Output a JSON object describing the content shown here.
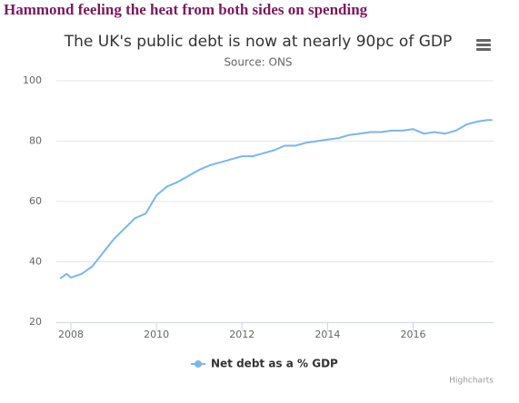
{
  "header": "Hammond feeling the heat from both sides on spending",
  "chart_data": {
    "type": "line",
    "title": "The UK's public debt is now at nearly 90pc of GDP",
    "subtitle": "Source: ONS",
    "credits": "Highcharts",
    "x": [
      2007.75,
      2007.9,
      2008.0,
      2008.25,
      2008.5,
      2008.75,
      2009.0,
      2009.25,
      2009.5,
      2009.75,
      2010.0,
      2010.25,
      2010.5,
      2010.75,
      2011.0,
      2011.25,
      2011.5,
      2011.75,
      2012.0,
      2012.25,
      2012.5,
      2012.75,
      2013.0,
      2013.25,
      2013.5,
      2013.75,
      2014.0,
      2014.25,
      2014.5,
      2014.75,
      2015.0,
      2015.25,
      2015.5,
      2015.75,
      2016.0,
      2016.25,
      2016.5,
      2016.75,
      2017.0,
      2017.25,
      2017.5,
      2017.75,
      2017.85
    ],
    "series": [
      {
        "name": "Net debt as a % GDP",
        "color": "#7cb5ec",
        "values": [
          34.5,
          36,
          34.8,
          36,
          38.5,
          43,
          47.5,
          51,
          54.5,
          56,
          62,
          65,
          66.5,
          68.5,
          70.5,
          72,
          73,
          74,
          75,
          75,
          76,
          77,
          78.5,
          78.5,
          79.5,
          80,
          80.5,
          81,
          82,
          82.5,
          83,
          83,
          83.5,
          83.5,
          84,
          82.5,
          83,
          82.5,
          83.5,
          85.5,
          86.5,
          87,
          87
        ]
      }
    ],
    "xlim": [
      2007.66,
      2017.88
    ],
    "ylim": [
      20,
      100
    ],
    "xticks": [
      2008,
      2010,
      2012,
      2014,
      2016
    ],
    "yticks": [
      20,
      40,
      60,
      80,
      100
    ],
    "grid": true,
    "legend": "bottom"
  }
}
